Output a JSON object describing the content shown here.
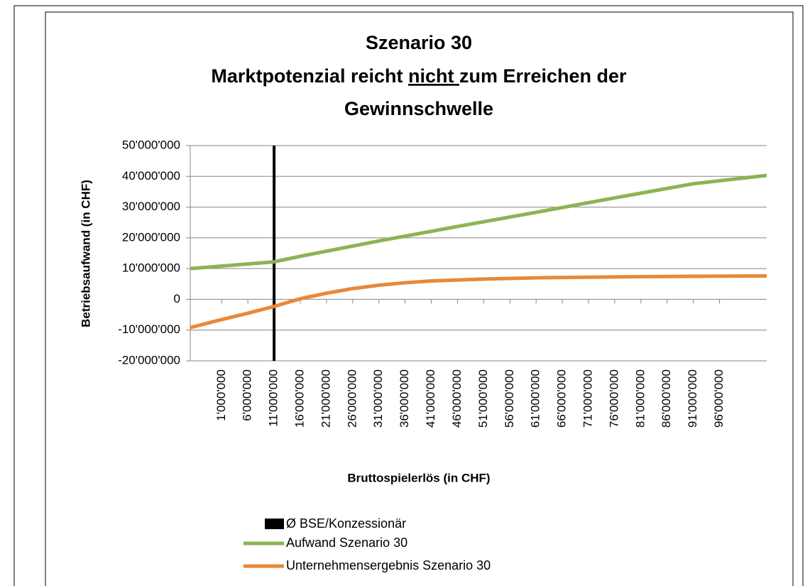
{
  "chart_data": {
    "type": "line",
    "title": {
      "line1": "Szenario 30",
      "line2": [
        "Marktpotenzial reicht ",
        "nicht ",
        "zum Erreichen der"
      ],
      "line3": "Gewinnschwelle"
    },
    "y_label": "Betriebsaufwand (in CHF)",
    "x_label": "Bruttospielerlös (in CHF)",
    "xlim": [
      -5000000,
      105000000
    ],
    "xticks": [
      {
        "value": 1000000,
        "label": "1'000'000"
      },
      {
        "value": 6000000,
        "label": "6'000'000"
      },
      {
        "value": 11000000,
        "label": "11'000'000"
      },
      {
        "value": 16000000,
        "label": "16'000'000"
      },
      {
        "value": 21000000,
        "label": "21'000'000"
      },
      {
        "value": 26000000,
        "label": "26'000'000"
      },
      {
        "value": 31000000,
        "label": "31'000'000"
      },
      {
        "value": 36000000,
        "label": "36'000'000"
      },
      {
        "value": 41000000,
        "label": "41'000'000"
      },
      {
        "value": 46000000,
        "label": "46'000'000"
      },
      {
        "value": 51000000,
        "label": "51'000'000"
      },
      {
        "value": 56000000,
        "label": "56'000'000"
      },
      {
        "value": 61000000,
        "label": "61'000'000"
      },
      {
        "value": 66000000,
        "label": "66'000'000"
      },
      {
        "value": 71000000,
        "label": "71'000'000"
      },
      {
        "value": 76000000,
        "label": "76'000'000"
      },
      {
        "value": 81000000,
        "label": "81'000'000"
      },
      {
        "value": 86000000,
        "label": "86'000'000"
      },
      {
        "value": 91000000,
        "label": "91'000'000"
      },
      {
        "value": 96000000,
        "label": "96'000'000"
      }
    ],
    "ylim": [
      -20000000,
      50000000
    ],
    "yticks": [
      {
        "value": -20000000,
        "label": "-20'000'000"
      },
      {
        "value": -10000000,
        "label": "-10'000'000"
      },
      0,
      {
        "value": 10000000,
        "label": "10'000'000"
      },
      {
        "value": 20000000,
        "label": "20'000'000"
      },
      {
        "value": 30000000,
        "label": "30'000'000"
      },
      {
        "value": 40000000,
        "label": "40'000'000"
      },
      {
        "value": 50000000,
        "label": "50'000'000"
      }
    ],
    "grid": true,
    "reference_line": {
      "name": "Ø BSE/Konzessionär",
      "color": "#000000",
      "x": 11000000
    },
    "series": [
      {
        "name": "Aufwand Szenario 30",
        "color": "#8cb453",
        "x": [
          -5000000,
          11000000,
          16000000,
          31000000,
          46000000,
          61000000,
          76000000,
          91000000,
          105000000
        ],
        "values": [
          10000000,
          12200000,
          14000000,
          19000000,
          23700000,
          28300000,
          33000000,
          37600000,
          40300000
        ]
      },
      {
        "name": "Unternehmensergebnis Szenario 30",
        "color": "#e8883a",
        "x": [
          -5000000,
          0,
          6000000,
          11000000,
          16000000,
          21000000,
          26000000,
          31000000,
          36000000,
          41000000,
          51000000,
          61000000,
          76000000,
          91000000,
          105000000
        ],
        "values": [
          -9200000,
          -7000000,
          -4500000,
          -2300000,
          200000,
          2000000,
          3500000,
          4600000,
          5400000,
          6000000,
          6600000,
          7000000,
          7300000,
          7500000,
          7600000
        ]
      }
    ]
  }
}
